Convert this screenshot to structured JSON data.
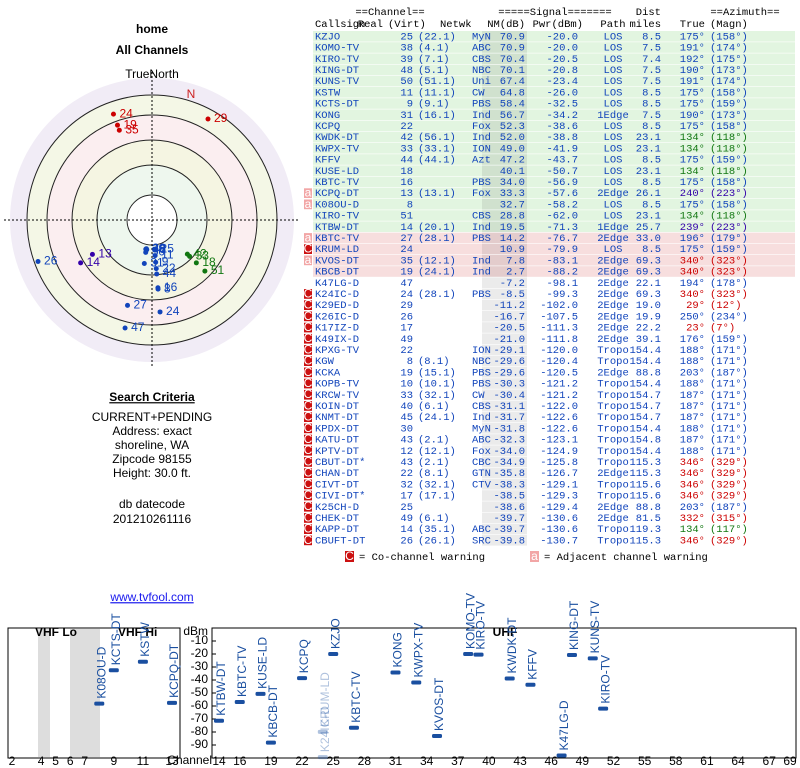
{
  "header": {
    "title": "home",
    "subtitle": "All Channels"
  },
  "polar": {
    "north_label": "TrueNorth",
    "n": "N"
  },
  "criteria": {
    "title": "Search Criteria",
    "lines": [
      "CURRENT+PENDING",
      "Address: exact",
      "shoreline, WA",
      "Zipcode 98155",
      "Height: 30.0 ft."
    ],
    "datecode_label": "db datecode",
    "datecode": "201210261116"
  },
  "link": "www.tvfool.com",
  "table": {
    "group_headers": [
      "==Channel==",
      "=====Signal=======",
      "Dist",
      "==Azimuth=="
    ],
    "columns": [
      "Callsign",
      "Real",
      "(Virt)",
      "Netwk",
      "NM(dB)",
      "Pwr(dBm)",
      "Path",
      "miles",
      "True",
      "(Magn)"
    ],
    "rows": [
      {
        "callsign": "KZJO",
        "real": "25",
        "virt": "(22.1)",
        "netwk": "MyN",
        "nm": "70.9",
        "pwr": "-20.0",
        "path": "LOS",
        "dist": "8.5",
        "true": "175°",
        "magn": "(158°)",
        "color": "#e2f5e0",
        "az_color": "#1144bb"
      },
      {
        "callsign": "KOMO-TV",
        "real": "38",
        "virt": "(4.1)",
        "netwk": "ABC",
        "nm": "70.9",
        "pwr": "-20.0",
        "path": "LOS",
        "dist": "7.5",
        "true": "191°",
        "magn": "(174°)",
        "color": "#e2f5e0",
        "az_color": "#1144bb"
      },
      {
        "callsign": "KIRO-TV",
        "real": "39",
        "virt": "(7.1)",
        "netwk": "CBS",
        "nm": "70.4",
        "pwr": "-20.5",
        "path": "LOS",
        "dist": "7.4",
        "true": "192°",
        "magn": "(175°)",
        "color": "#e2f5e0",
        "az_color": "#1144bb"
      },
      {
        "callsign": "KING-DT",
        "real": "48",
        "virt": "(5.1)",
        "netwk": "NBC",
        "nm": "70.1",
        "pwr": "-20.8",
        "path": "LOS",
        "dist": "7.5",
        "true": "190°",
        "magn": "(173°)",
        "color": "#e2f5e0",
        "az_color": "#1144bb"
      },
      {
        "callsign": "KUNS-TV",
        "real": "50",
        "virt": "(51.1)",
        "netwk": "Uni",
        "nm": "67.4",
        "pwr": "-23.4",
        "path": "LOS",
        "dist": "7.5",
        "true": "191°",
        "magn": "(174°)",
        "color": "#e2f5e0",
        "az_color": "#1144bb"
      },
      {
        "callsign": "KSTW",
        "real": "11",
        "virt": "(11.1)",
        "netwk": "CW",
        "nm": "64.8",
        "pwr": "-26.0",
        "path": "LOS",
        "dist": "8.5",
        "true": "175°",
        "magn": "(158°)",
        "color": "#e2f5e0",
        "az_color": "#1144bb"
      },
      {
        "callsign": "KCTS-DT",
        "real": "9",
        "virt": "(9.1)",
        "netwk": "PBS",
        "nm": "58.4",
        "pwr": "-32.5",
        "path": "LOS",
        "dist": "8.5",
        "true": "175°",
        "magn": "(159°)",
        "color": "#e2f5e0",
        "az_color": "#1144bb"
      },
      {
        "callsign": "KONG",
        "real": "31",
        "virt": "(16.1)",
        "netwk": "Ind",
        "nm": "56.7",
        "pwr": "-34.2",
        "path": "1Edge",
        "dist": "7.5",
        "true": "190°",
        "magn": "(173°)",
        "color": "#e2f5e0",
        "az_color": "#1144bb"
      },
      {
        "callsign": "KCPQ",
        "real": "22",
        "netwk": "Fox",
        "nm": "52.3",
        "pwr": "-38.6",
        "path": "LOS",
        "dist": "8.5",
        "true": "175°",
        "magn": "(158°)",
        "color": "#e2f5e0",
        "az_color": "#1144bb"
      },
      {
        "callsign": "KWDK-DT",
        "real": "42",
        "virt": "(56.1)",
        "netwk": "Ind",
        "nm": "52.0",
        "pwr": "-38.8",
        "path": "LOS",
        "dist": "23.1",
        "true": "134°",
        "magn": "(118°)",
        "color": "#e2f5e0",
        "az_color": "#117711"
      },
      {
        "callsign": "KWPX-TV",
        "real": "33",
        "virt": "(33.1)",
        "netwk": "ION",
        "nm": "49.0",
        "pwr": "-41.9",
        "path": "LOS",
        "dist": "23.1",
        "true": "134°",
        "magn": "(118°)",
        "color": "#e2f5e0",
        "az_color": "#117711"
      },
      {
        "callsign": "KFFV",
        "real": "44",
        "virt": "(44.1)",
        "netwk": "Azt",
        "nm": "47.2",
        "pwr": "-43.7",
        "path": "LOS",
        "dist": "8.5",
        "true": "175°",
        "magn": "(159°)",
        "color": "#e2f5e0",
        "az_color": "#1144bb"
      },
      {
        "callsign": "KUSE-LD",
        "real": "18",
        "nm": "40.1",
        "pwr": "-50.7",
        "path": "LOS",
        "dist": "23.1",
        "true": "134°",
        "magn": "(118°)",
        "color": "#e2f5e0",
        "az_color": "#117711"
      },
      {
        "callsign": "KBTC-TV",
        "real": "16",
        "netwk": "PBS",
        "nm": "34.0",
        "pwr": "-56.9",
        "path": "LOS",
        "dist": "8.5",
        "true": "175°",
        "magn": "(158°)",
        "color": "#e2f5e0",
        "az_color": "#1144bb"
      },
      {
        "callsign": "KCPQ-DT",
        "real": "13",
        "virt": "(13.1)",
        "netwk": "Fox",
        "nm": "33.3",
        "pwr": "-57.6",
        "path": "2Edge",
        "dist": "26.1",
        "true": "240°",
        "magn": "(223°)",
        "color": "#e2f5e0",
        "az_color": "#3300aa",
        "warn": "a"
      },
      {
        "callsign": "K08OU-D",
        "real": "8",
        "nm": "32.7",
        "pwr": "-58.2",
        "path": "LOS",
        "dist": "8.5",
        "true": "175°",
        "magn": "(158°)",
        "color": "#e2f5e0",
        "az_color": "#1144bb",
        "warn": "a"
      },
      {
        "callsign": "KIRO-TV",
        "real": "51",
        "netwk": "CBS",
        "nm": "28.8",
        "pwr": "-62.0",
        "path": "LOS",
        "dist": "23.1",
        "true": "134°",
        "magn": "(118°)",
        "color": "#e2f5e0",
        "az_color": "#117711"
      },
      {
        "callsign": "KTBW-DT",
        "real": "14",
        "virt": "(20.1)",
        "netwk": "Ind",
        "nm": "19.5",
        "pwr": "-71.3",
        "path": "1Edge",
        "dist": "25.7",
        "true": "239°",
        "magn": "(223°)",
        "color": "#e2f5e0",
        "az_color": "#3300aa"
      },
      {
        "callsign": "KBTC-TV",
        "real": "27",
        "virt": "(28.1)",
        "netwk": "PBS",
        "nm": "14.2",
        "pwr": "-76.7",
        "path": "2Edge",
        "dist": "33.0",
        "true": "196°",
        "magn": "(179°)",
        "color": "#f7dede",
        "az_color": "#1144bb",
        "warn": "a"
      },
      {
        "callsign": "KRUM-LD",
        "real": "24",
        "nm": "10.9",
        "pwr": "-79.9",
        "path": "LOS",
        "dist": "8.5",
        "true": "175°",
        "magn": "(159°)",
        "color": "#f7dede",
        "az_color": "#1144bb",
        "warn": "C"
      },
      {
        "callsign": "KVOS-DT",
        "real": "35",
        "virt": "(12.1)",
        "netwk": "Ind",
        "nm": "7.8",
        "pwr": "-83.1",
        "path": "2Edge",
        "dist": "69.3",
        "true": "340°",
        "magn": "(323°)",
        "color": "#f7dede",
        "az_color": "#cc0000",
        "warn": "a"
      },
      {
        "callsign": "KBCB-DT",
        "real": "19",
        "virt": "(24.1)",
        "netwk": "Ind",
        "nm": "2.7",
        "pwr": "-88.2",
        "path": "2Edge",
        "dist": "69.3",
        "true": "340°",
        "magn": "(323°)",
        "color": "#f7dede",
        "az_color": "#cc0000"
      },
      {
        "callsign": "K47LG-D",
        "real": "47",
        "nm": "-7.2",
        "pwr": "-98.1",
        "path": "2Edge",
        "dist": "22.1",
        "true": "194°",
        "magn": "(178°)",
        "color": "#ffffff",
        "az_color": "#1144bb"
      },
      {
        "callsign": "K24IC-D",
        "real": "24",
        "virt": "(28.1)",
        "netwk": "PBS",
        "nm": "-8.5",
        "pwr": "-99.3",
        "path": "2Edge",
        "dist": "69.3",
        "true": "340°",
        "magn": "(323°)",
        "color": "#ffffff",
        "az_color": "#cc0000",
        "warn": "C"
      },
      {
        "callsign": "K29ED-D",
        "real": "29",
        "nm": "-11.2",
        "pwr": "-102.0",
        "path": "2Edge",
        "dist": "19.0",
        "true": "29°",
        "magn": "(12°)",
        "color": "#ffffff",
        "az_color": "#cc0000",
        "warn": "C"
      },
      {
        "callsign": "K26IC-D",
        "real": "26",
        "nm": "-16.7",
        "pwr": "-107.5",
        "path": "2Edge",
        "dist": "19.9",
        "true": "250°",
        "magn": "(234°)",
        "color": "#ffffff",
        "az_color": "#1144bb",
        "warn": "C"
      },
      {
        "callsign": "K17IZ-D",
        "real": "17",
        "nm": "-20.5",
        "pwr": "-111.3",
        "path": "2Edge",
        "dist": "22.2",
        "true": "23°",
        "magn": "(7°)",
        "color": "#ffffff",
        "az_color": "#cc0000",
        "warn": "C"
      },
      {
        "callsign": "K49IX-D",
        "real": "49",
        "nm": "-21.0",
        "pwr": "-111.8",
        "path": "2Edge",
        "dist": "39.1",
        "true": "176°",
        "magn": "(159°)",
        "color": "#ffffff",
        "az_color": "#1144bb",
        "warn": "C"
      },
      {
        "callsign": "KPXG-TV",
        "real": "22",
        "netwk": "ION",
        "nm": "-29.1",
        "pwr": "-120.0",
        "path": "Tropo",
        "dist": "154.4",
        "true": "188°",
        "magn": "(171°)",
        "color": "#ffffff",
        "az_color": "#1144bb",
        "warn": "C"
      },
      {
        "callsign": "KGW",
        "real": "8",
        "virt": "(8.1)",
        "netwk": "NBC",
        "nm": "-29.6",
        "pwr": "-120.4",
        "path": "Tropo",
        "dist": "154.4",
        "true": "188°",
        "magn": "(171°)",
        "color": "#ffffff",
        "az_color": "#1144bb",
        "warn": "C"
      },
      {
        "callsign": "KCKA",
        "real": "19",
        "virt": "(15.1)",
        "netwk": "PBS",
        "nm": "-29.6",
        "pwr": "-120.5",
        "path": "2Edge",
        "dist": "88.8",
        "true": "203°",
        "magn": "(187°)",
        "color": "#ffffff",
        "az_color": "#1144bb",
        "warn": "C"
      },
      {
        "callsign": "KOPB-TV",
        "real": "10",
        "virt": "(10.1)",
        "netwk": "PBS",
        "nm": "-30.3",
        "pwr": "-121.2",
        "path": "Tropo",
        "dist": "154.4",
        "true": "188°",
        "magn": "(171°)",
        "color": "#ffffff",
        "az_color": "#1144bb",
        "warn": "C"
      },
      {
        "callsign": "KRCW-TV",
        "real": "33",
        "virt": "(32.1)",
        "netwk": "CW",
        "nm": "-30.4",
        "pwr": "-121.2",
        "path": "Tropo",
        "dist": "154.7",
        "true": "187°",
        "magn": "(171°)",
        "color": "#ffffff",
        "az_color": "#1144bb",
        "warn": "C"
      },
      {
        "callsign": "KOIN-DT",
        "real": "40",
        "virt": "(6.1)",
        "netwk": "CBS",
        "nm": "-31.1",
        "pwr": "-122.0",
        "path": "Tropo",
        "dist": "154.7",
        "true": "187°",
        "magn": "(171°)",
        "color": "#ffffff",
        "az_color": "#1144bb",
        "warn": "C"
      },
      {
        "callsign": "KNMT-DT",
        "real": "45",
        "virt": "(24.1)",
        "netwk": "Ind",
        "nm": "-31.7",
        "pwr": "-122.6",
        "path": "Tropo",
        "dist": "154.7",
        "true": "187°",
        "magn": "(171°)",
        "color": "#ffffff",
        "az_color": "#1144bb",
        "warn": "C"
      },
      {
        "callsign": "KPDX-DT",
        "real": "30",
        "netwk": "MyN",
        "nm": "-31.8",
        "pwr": "-122.6",
        "path": "Tropo",
        "dist": "154.4",
        "true": "188°",
        "magn": "(171°)",
        "color": "#ffffff",
        "az_color": "#1144bb",
        "warn": "C"
      },
      {
        "callsign": "KATU-DT",
        "real": "43",
        "virt": "(2.1)",
        "netwk": "ABC",
        "nm": "-32.3",
        "pwr": "-123.1",
        "path": "Tropo",
        "dist": "154.8",
        "true": "187°",
        "magn": "(171°)",
        "color": "#ffffff",
        "az_color": "#1144bb",
        "warn": "C"
      },
      {
        "callsign": "KPTV-DT",
        "real": "12",
        "virt": "(12.1)",
        "netwk": "Fox",
        "nm": "-34.0",
        "pwr": "-124.9",
        "path": "Tropo",
        "dist": "154.4",
        "true": "188°",
        "magn": "(171°)",
        "color": "#ffffff",
        "az_color": "#1144bb",
        "warn": "C"
      },
      {
        "callsign": "CBUT-DT*",
        "real": "43",
        "virt": "(2.1)",
        "netwk": "CBC",
        "nm": "-34.9",
        "pwr": "-125.8",
        "path": "Tropo",
        "dist": "115.3",
        "true": "346°",
        "magn": "(329°)",
        "color": "#ffffff",
        "az_color": "#cc0000",
        "warn": "C"
      },
      {
        "callsign": "CHAN-DT",
        "real": "22",
        "virt": "(8.1)",
        "netwk": "GTN",
        "nm": "-35.8",
        "pwr": "-126.7",
        "path": "2Edge",
        "dist": "115.3",
        "true": "346°",
        "magn": "(329°)",
        "color": "#ffffff",
        "az_color": "#cc0000",
        "warn": "C"
      },
      {
        "callsign": "CIVT-DT",
        "real": "32",
        "virt": "(32.1)",
        "netwk": "CTV",
        "nm": "-38.3",
        "pwr": "-129.1",
        "path": "Tropo",
        "dist": "115.6",
        "true": "346°",
        "magn": "(329°)",
        "color": "#ffffff",
        "az_color": "#cc0000",
        "warn": "C"
      },
      {
        "callsign": "CIVI-DT*",
        "real": "17",
        "virt": "(17.1)",
        "nm": "-38.5",
        "pwr": "-129.3",
        "path": "Tropo",
        "dist": "115.6",
        "true": "346°",
        "magn": "(329°)",
        "color": "#ffffff",
        "az_color": "#cc0000",
        "warn": "C"
      },
      {
        "callsign": "K25CH-D",
        "real": "25",
        "nm": "-38.6",
        "pwr": "-129.4",
        "path": "2Edge",
        "dist": "88.8",
        "true": "203°",
        "magn": "(187°)",
        "color": "#ffffff",
        "az_color": "#1144bb",
        "warn": "C"
      },
      {
        "callsign": "CHEK-DT",
        "real": "49",
        "virt": "(6.1)",
        "nm": "-39.7",
        "pwr": "-130.6",
        "path": "2Edge",
        "dist": "81.5",
        "true": "332°",
        "magn": "(315°)",
        "color": "#ffffff",
        "az_color": "#cc0000",
        "warn": "C"
      },
      {
        "callsign": "KAPP-DT",
        "real": "14",
        "virt": "(35.1)",
        "netwk": "ABC",
        "nm": "-39.7",
        "pwr": "-130.6",
        "path": "Tropo",
        "dist": "119.3",
        "true": "134°",
        "magn": "(117°)",
        "color": "#ffffff",
        "az_color": "#117711",
        "warn": "C"
      },
      {
        "callsign": "CBUFT-DT",
        "real": "26",
        "virt": "(26.1)",
        "netwk": "SRC",
        "nm": "-39.8",
        "pwr": "-130.7",
        "path": "Tropo",
        "dist": "115.3",
        "true": "346°",
        "magn": "(329°)",
        "color": "#ffffff",
        "az_color": "#cc0000",
        "warn": "C"
      }
    ]
  },
  "legend": [
    {
      "symbol": "C",
      "text": "= Co-channel warning",
      "color": "#cc1111"
    },
    {
      "symbol": "a",
      "text": "= Adjacent channel warning",
      "color": "#f2a6a6"
    }
  ],
  "spectrum": {
    "sections": [
      "VHF Lo",
      "VHF Hi",
      "UHF"
    ],
    "y_label": "dBm",
    "x_label": "Channel",
    "ylim": [
      0,
      -100
    ],
    "yticks": [
      -10,
      -20,
      -30,
      -40,
      -50,
      -60,
      -70,
      -80,
      -90
    ],
    "vhf_xlim": [
      2,
      13
    ],
    "vhf_xticks": [
      2,
      4,
      5,
      6,
      7,
      9,
      11,
      13
    ],
    "uhf_xlim": [
      14,
      69
    ],
    "uhf_xticks": [
      14,
      16,
      19,
      22,
      25,
      28,
      31,
      34,
      37,
      40,
      43,
      46,
      49,
      52,
      55,
      58,
      61,
      64,
      67,
      69
    ],
    "mark_color": "#1a4fa0"
  }
}
